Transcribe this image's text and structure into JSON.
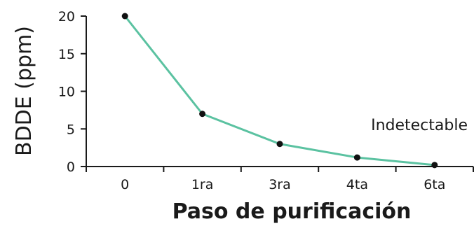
{
  "chart_data": {
    "type": "line",
    "categories": [
      "0",
      "1ra",
      "3ra",
      "4ta",
      "6ta"
    ],
    "series": [
      {
        "values": [
          20,
          7,
          3,
          1.2,
          0.2
        ]
      }
    ],
    "xlabel": "Paso de purificación",
    "ylabel": "BDDE (ppm)",
    "ylim": [
      0,
      20
    ],
    "yticks": [
      0,
      5,
      10,
      15,
      20
    ],
    "annotation": "Indetectable",
    "grid": false,
    "line_color": "#5bc2a1",
    "marker_color": "#111111"
  }
}
